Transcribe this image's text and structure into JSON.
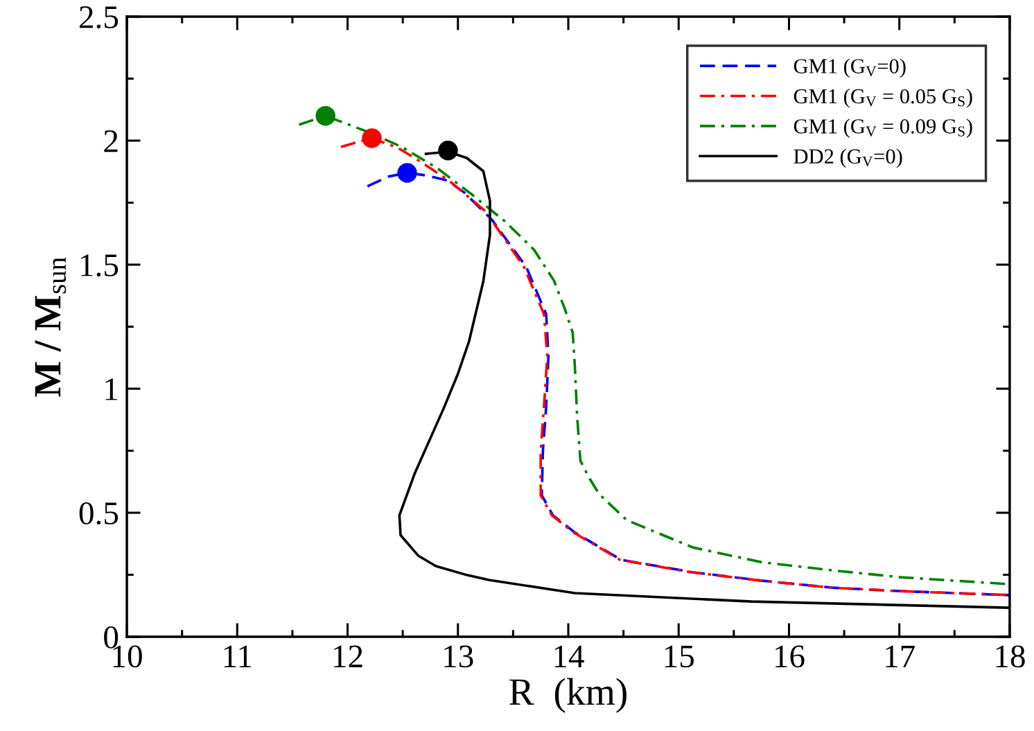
{
  "chart_data": {
    "type": "line",
    "xlabel": "R  (km)",
    "ylabel": "M / M$_{sun}$",
    "xlim": [
      10,
      18
    ],
    "ylim": [
      0,
      2.5
    ],
    "xticks": [
      10,
      {
        "value": 10.5,
        "label": null
      },
      11,
      {
        "value": 11.5,
        "label": null
      },
      12,
      {
        "value": 12.5,
        "label": null
      },
      13,
      {
        "value": 13.5,
        "label": null
      },
      14,
      {
        "value": 14.5,
        "label": null
      },
      15,
      {
        "value": 15.5,
        "label": null
      },
      16,
      {
        "value": 16.5,
        "label": null
      },
      17,
      {
        "value": 17.5,
        "label": null
      },
      18
    ],
    "yticks": [
      0,
      {
        "value": 0.25,
        "label": null
      },
      0.5,
      {
        "value": 0.75,
        "label": null
      },
      1,
      {
        "value": 1.25,
        "label": null
      },
      1.5,
      {
        "value": 1.75,
        "label": null
      },
      2,
      {
        "value": 2.25,
        "label": null
      },
      2.5
    ],
    "grid": false,
    "legend": "top right",
    "series": [
      {
        "name": "GM1 (G$_{V}$=0)",
        "color": "#0000ff",
        "line_style": "dashed",
        "x": [
          12.18,
          12.37,
          12.54,
          12.71,
          12.9,
          13.06,
          13.31,
          13.62,
          13.8,
          13.82,
          13.8,
          13.77,
          13.76,
          13.86,
          14.06,
          14.48,
          15.13,
          15.76,
          16.39,
          17.01,
          18.0
        ],
        "values": [
          1.816,
          1.855,
          1.87,
          1.86,
          1.84,
          1.79,
          1.68,
          1.49,
          1.3,
          1.13,
          0.93,
          0.75,
          0.57,
          0.49,
          0.42,
          0.31,
          0.26,
          0.226,
          0.198,
          0.184,
          0.168
        ]
      },
      {
        "name": "GM1 (G$_{V}$ = 0.05 G$_{S}$)",
        "color": "#ff0000",
        "line_style": "dashdot",
        "x": [
          11.94,
          12.22,
          12.46,
          12.68,
          12.93,
          13.25,
          13.6,
          13.78,
          13.81,
          13.78,
          13.75,
          13.75,
          13.85,
          14.05,
          14.47,
          15.12,
          15.75,
          16.38,
          17.0,
          18.0
        ],
        "values": [
          1.975,
          2.01,
          1.97,
          1.91,
          1.835,
          1.715,
          1.49,
          1.3,
          1.13,
          0.93,
          0.75,
          0.57,
          0.49,
          0.42,
          0.31,
          0.26,
          0.226,
          0.198,
          0.184,
          0.168
        ]
      },
      {
        "name": "GM1 (G$_{V}$ = 0.09 G$_{S}$)",
        "color": "#008000",
        "line_style": "dashdot",
        "x": [
          11.56,
          11.8,
          12.18,
          12.49,
          12.81,
          13.12,
          13.43,
          13.69,
          13.87,
          13.97,
          14.04,
          14.06,
          14.08,
          14.11,
          14.19,
          14.28,
          14.53,
          15.13,
          15.76,
          16.39,
          17.01,
          18.0
        ],
        "values": [
          2.064,
          2.1,
          2.036,
          1.975,
          1.89,
          1.785,
          1.673,
          1.56,
          1.436,
          1.32,
          1.226,
          1.087,
          0.89,
          0.71,
          0.64,
          0.575,
          0.47,
          0.36,
          0.3,
          0.268,
          0.24,
          0.212
        ]
      },
      {
        "name": "DD2 (G$_{V}$=0)",
        "color": "#000000",
        "line_style": "solid",
        "x": [
          12.71,
          12.91,
          13.08,
          13.23,
          13.29,
          13.29,
          13.29,
          13.23,
          13.1,
          13.0,
          12.87,
          12.61,
          12.47,
          12.48,
          12.64,
          12.8,
          13.08,
          13.28,
          14.06,
          15.66,
          18.0
        ],
        "values": [
          1.947,
          1.955,
          1.93,
          1.877,
          1.757,
          1.707,
          1.62,
          1.433,
          1.19,
          1.06,
          0.92,
          0.66,
          0.49,
          0.41,
          0.327,
          0.285,
          0.249,
          0.229,
          0.176,
          0.142,
          0.117
        ]
      },
      {
        "type": "scatter",
        "marker": "circle",
        "x": [
          12.54,
          12.22,
          11.8,
          12.91
        ],
        "values": [
          1.87,
          2.01,
          2.1,
          1.96
        ],
        "colors": [
          "#0000ff",
          "#ff0000",
          "#008000",
          "#000000"
        ]
      }
    ]
  }
}
